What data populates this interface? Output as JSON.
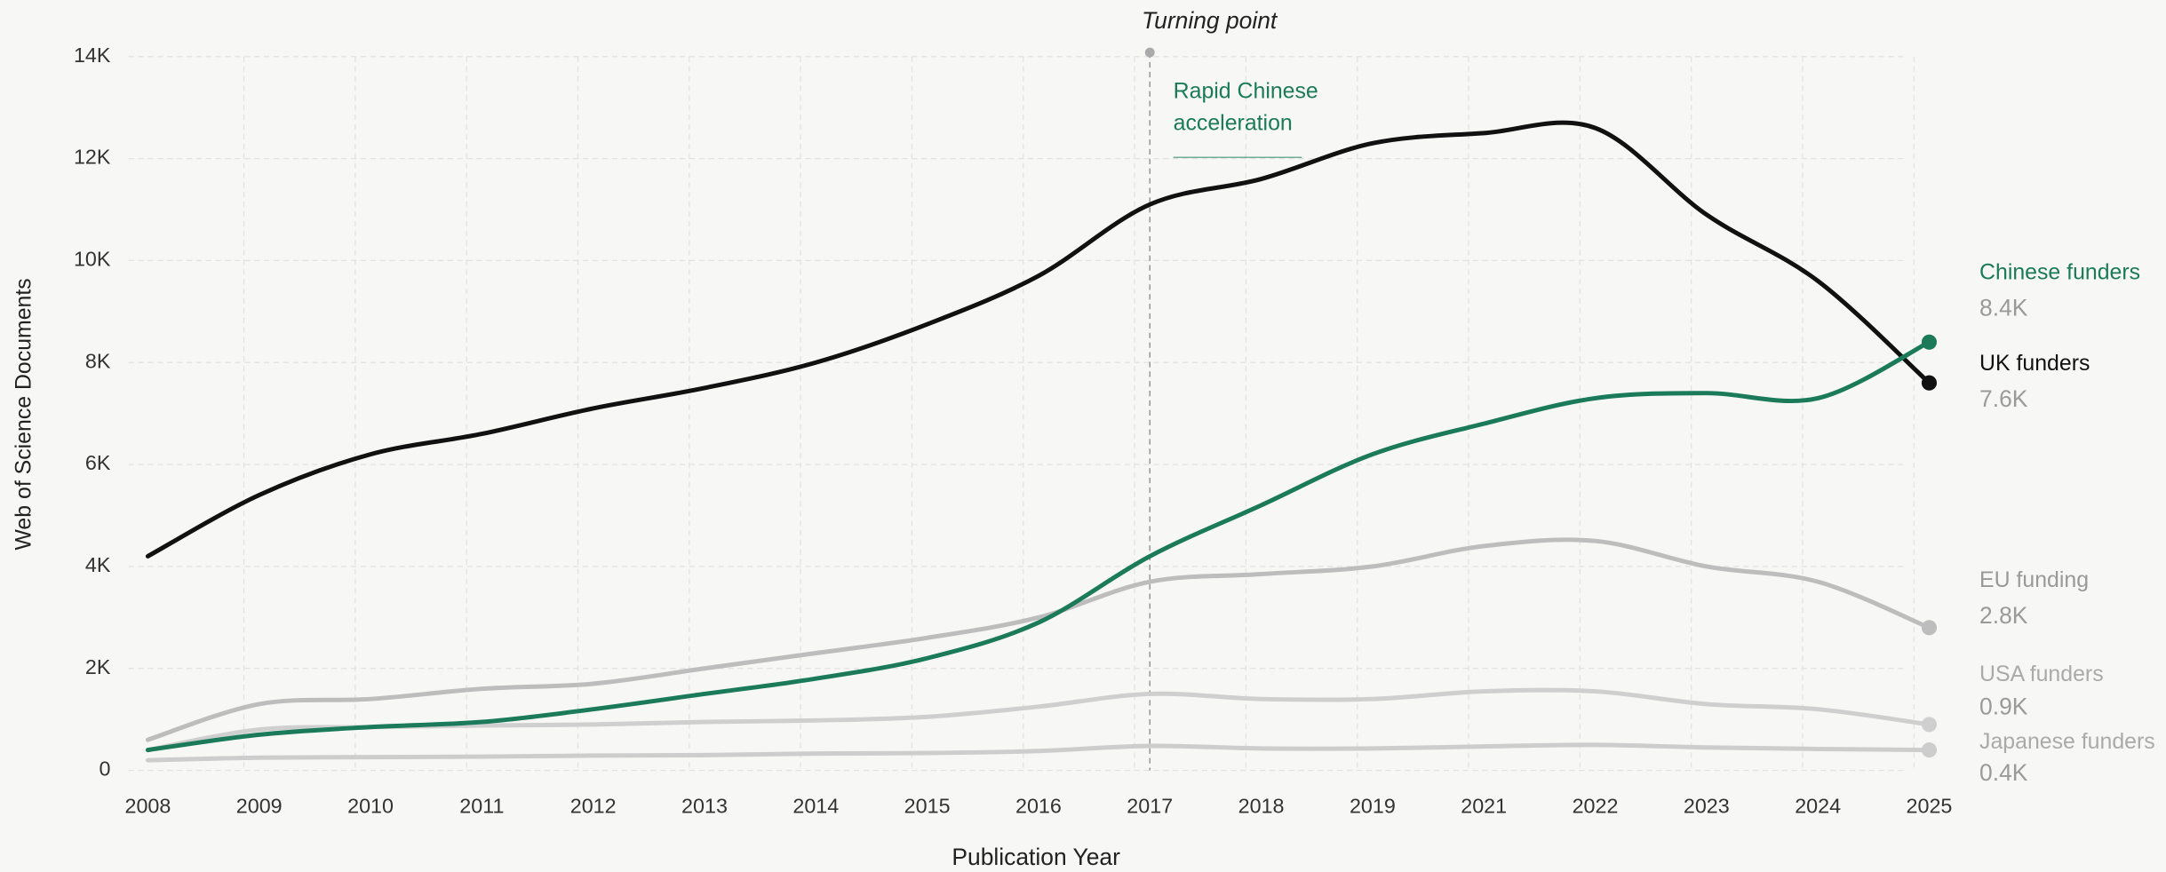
{
  "chart_data": {
    "type": "line",
    "x_label": "Publication Year",
    "y_label": "Web of Science Documents",
    "categories": [
      "2008",
      "2009",
      "2010",
      "2011",
      "2012",
      "2013",
      "2014",
      "2015",
      "2016",
      "2017",
      "2018",
      "2019",
      "2021",
      "2022",
      "2023",
      "2024",
      "2025"
    ],
    "ylim": [
      0,
      14000
    ],
    "yticks": [
      0,
      {
        "value": 2000,
        "label": "2K"
      },
      {
        "value": 4000,
        "label": "4K"
      },
      {
        "value": 6000,
        "label": "6K"
      },
      {
        "value": 8000,
        "label": "8K"
      },
      {
        "value": 10000,
        "label": "10K"
      },
      {
        "value": 12000,
        "label": "12K"
      },
      {
        "value": 14000,
        "label": "14K"
      }
    ],
    "grid": true,
    "series": [
      {
        "name": "Chinese funders",
        "color": "#1a7a5a",
        "values": [
          400,
          700,
          850,
          950,
          1200,
          1500,
          1800,
          2200,
          2900,
          4200,
          5200,
          6200,
          6800,
          7300,
          7400,
          7300,
          8400
        ],
        "value_labels": [
          null,
          null,
          null,
          null,
          null,
          null,
          null,
          null,
          null,
          null,
          null,
          null,
          null,
          null,
          null,
          null,
          "8.4K"
        ]
      },
      {
        "name": "UK funders",
        "color": "#111111",
        "values": [
          4200,
          5400,
          6200,
          6600,
          7100,
          7500,
          8000,
          8750,
          9700,
          11100,
          11600,
          12300,
          12500,
          12600,
          10900,
          9600,
          7600
        ],
        "value_labels": [
          null,
          null,
          null,
          null,
          null,
          null,
          null,
          null,
          null,
          null,
          null,
          null,
          null,
          null,
          null,
          null,
          "7.6K"
        ]
      },
      {
        "name": "EU funding",
        "color": "#bdbdbd",
        "values": [
          600,
          1300,
          1400,
          1600,
          1700,
          2000,
          2300,
          2600,
          3000,
          3700,
          3850,
          4000,
          4400,
          4500,
          4000,
          3700,
          2800
        ],
        "value_labels": [
          null,
          null,
          null,
          null,
          null,
          null,
          null,
          null,
          null,
          null,
          null,
          null,
          null,
          null,
          null,
          null,
          "2.8K"
        ]
      },
      {
        "name": "USA funders",
        "color": "#cfcfcf",
        "values": [
          400,
          800,
          850,
          880,
          900,
          950,
          980,
          1050,
          1250,
          1500,
          1400,
          1400,
          1550,
          1550,
          1300,
          1200,
          900
        ],
        "value_labels": [
          null,
          null,
          null,
          null,
          null,
          null,
          null,
          null,
          null,
          null,
          null,
          null,
          null,
          null,
          null,
          null,
          "0.9K"
        ]
      },
      {
        "name": "Japanese funders",
        "color": "#cdcdcd",
        "values": [
          200,
          250,
          260,
          270,
          290,
          300,
          330,
          340,
          380,
          480,
          430,
          430,
          470,
          500,
          450,
          420,
          400
        ],
        "value_labels": [
          null,
          null,
          null,
          null,
          null,
          null,
          null,
          null,
          null,
          null,
          null,
          null,
          null,
          null,
          null,
          null,
          "0.4K"
        ]
      }
    ],
    "annotations": [
      {
        "at": "2017",
        "title": "Turning point",
        "lines": [
          "Rapid Chinese",
          "acceleration"
        ],
        "color": "#1a7a5a"
      }
    ]
  }
}
